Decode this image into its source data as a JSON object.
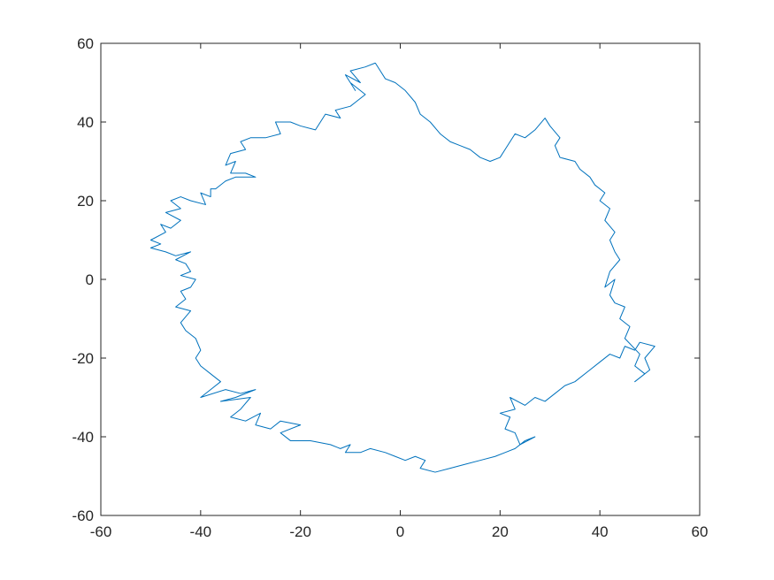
{
  "chart_data": {
    "type": "line",
    "title": "",
    "xlabel": "",
    "ylabel": "",
    "xlim": [
      -60,
      60
    ],
    "ylim": [
      -60,
      60
    ],
    "x_ticks": [
      -60,
      -40,
      -20,
      0,
      20,
      40,
      60
    ],
    "y_ticks": [
      -60,
      -40,
      -20,
      0,
      20,
      40,
      60
    ],
    "x_tick_labels": [
      "-60",
      "-40",
      "-20",
      "0",
      "20",
      "40",
      "60"
    ],
    "y_tick_labels": [
      "-60",
      "-40",
      "-20",
      "0",
      "20",
      "40",
      "60"
    ],
    "grid": false,
    "box": true,
    "colors": {
      "line": "#0072bd",
      "axes": "#262626",
      "background": "#ffffff"
    },
    "series": [
      {
        "values": [
          [
            -5,
            55
          ],
          [
            -7,
            54
          ],
          [
            -10,
            53
          ],
          [
            -8,
            50
          ],
          [
            -11,
            52
          ],
          [
            -9,
            48
          ],
          [
            -10,
            50
          ],
          [
            -7,
            47
          ],
          [
            -9,
            45
          ],
          [
            -10,
            44
          ],
          [
            -13,
            43
          ],
          [
            -12,
            41
          ],
          [
            -15,
            42
          ],
          [
            -17,
            38
          ],
          [
            -20,
            39
          ],
          [
            -22,
            40
          ],
          [
            -25,
            40
          ],
          [
            -24,
            37
          ],
          [
            -27,
            36
          ],
          [
            -30,
            36
          ],
          [
            -32,
            35
          ],
          [
            -31,
            33
          ],
          [
            -34,
            32
          ],
          [
            -35,
            29
          ],
          [
            -33,
            30
          ],
          [
            -34,
            27
          ],
          [
            -31,
            27
          ],
          [
            -29,
            26
          ],
          [
            -33,
            26
          ],
          [
            -35,
            25
          ],
          [
            -37,
            23
          ],
          [
            -38,
            23
          ],
          [
            -38,
            21
          ],
          [
            -40,
            22
          ],
          [
            -39,
            19
          ],
          [
            -42,
            20
          ],
          [
            -44,
            21
          ],
          [
            -46,
            20
          ],
          [
            -44,
            18
          ],
          [
            -47,
            17
          ],
          [
            -44,
            15
          ],
          [
            -46,
            13
          ],
          [
            -48,
            14
          ],
          [
            -47,
            12
          ],
          [
            -50,
            10
          ],
          [
            -48,
            9
          ],
          [
            -50,
            8
          ],
          [
            -47,
            7
          ],
          [
            -45,
            6
          ],
          [
            -42,
            7
          ],
          [
            -45,
            5
          ],
          [
            -43,
            4
          ],
          [
            -42,
            2
          ],
          [
            -44,
            1
          ],
          [
            -41,
            0
          ],
          [
            -42,
            -2
          ],
          [
            -44,
            -3
          ],
          [
            -43,
            -5
          ],
          [
            -45,
            -7
          ],
          [
            -42,
            -8
          ],
          [
            -44,
            -11
          ],
          [
            -43,
            -13
          ],
          [
            -41,
            -15
          ],
          [
            -40,
            -18
          ],
          [
            -41,
            -20
          ],
          [
            -40,
            -22
          ],
          [
            -38,
            -24
          ],
          [
            -36,
            -26
          ],
          [
            -38,
            -28
          ],
          [
            -40,
            -30
          ],
          [
            -35,
            -28
          ],
          [
            -32,
            -29
          ],
          [
            -29,
            -28
          ],
          [
            -33,
            -30
          ],
          [
            -36,
            -31
          ],
          [
            -30,
            -30
          ],
          [
            -32,
            -33
          ],
          [
            -34,
            -35
          ],
          [
            -31,
            -36
          ],
          [
            -28,
            -34
          ],
          [
            -29,
            -37
          ],
          [
            -26,
            -38
          ],
          [
            -24,
            -36
          ],
          [
            -20,
            -37
          ],
          [
            -24,
            -39
          ],
          [
            -22,
            -41
          ],
          [
            -18,
            -41
          ],
          [
            -14,
            -42
          ],
          [
            -12,
            -43
          ],
          [
            -10,
            -42
          ],
          [
            -11,
            -44
          ],
          [
            -8,
            -44
          ],
          [
            -6,
            -43
          ],
          [
            -3,
            -44
          ],
          [
            -1,
            -45
          ],
          [
            1,
            -46
          ],
          [
            3,
            -45
          ],
          [
            5,
            -46
          ],
          [
            4,
            -48
          ],
          [
            7,
            -49
          ],
          [
            10,
            -48
          ],
          [
            13,
            -47
          ],
          [
            16,
            -46
          ],
          [
            19,
            -45
          ],
          [
            21,
            -44
          ],
          [
            23,
            -43
          ],
          [
            25,
            -41
          ],
          [
            27,
            -40
          ],
          [
            24,
            -42
          ],
          [
            23,
            -39
          ],
          [
            21,
            -38
          ],
          [
            22,
            -35
          ],
          [
            20,
            -34
          ],
          [
            23,
            -33
          ],
          [
            22,
            -30
          ],
          [
            25,
            -32
          ],
          [
            27,
            -30
          ],
          [
            29,
            -31
          ],
          [
            31,
            -29
          ],
          [
            33,
            -27
          ],
          [
            35,
            -26
          ],
          [
            38,
            -23
          ],
          [
            40,
            -21
          ],
          [
            42,
            -19
          ],
          [
            44,
            -20
          ],
          [
            45,
            -17
          ],
          [
            47,
            -18
          ],
          [
            48,
            -16
          ],
          [
            51,
            -17
          ],
          [
            49,
            -20
          ],
          [
            50,
            -23
          ],
          [
            47,
            -26
          ],
          [
            49,
            -24
          ],
          [
            47,
            -22
          ],
          [
            48,
            -19
          ],
          [
            45,
            -15
          ],
          [
            46,
            -12
          ],
          [
            44,
            -10
          ],
          [
            45,
            -7
          ],
          [
            43,
            -6
          ],
          [
            42,
            -4
          ],
          [
            43,
            0
          ],
          [
            41,
            -2
          ],
          [
            42,
            2
          ],
          [
            44,
            5
          ],
          [
            43,
            7
          ],
          [
            42,
            10
          ],
          [
            43,
            12
          ],
          [
            41,
            15
          ],
          [
            42,
            18
          ],
          [
            40,
            20
          ],
          [
            41,
            22
          ],
          [
            39,
            24
          ],
          [
            38,
            26
          ],
          [
            36,
            28
          ],
          [
            35,
            30
          ],
          [
            32,
            31
          ],
          [
            31,
            34
          ],
          [
            32,
            36
          ],
          [
            30,
            39
          ],
          [
            29,
            41
          ],
          [
            27,
            38
          ],
          [
            25,
            36
          ],
          [
            23,
            37
          ],
          [
            22,
            35
          ],
          [
            21,
            33
          ],
          [
            20,
            31
          ],
          [
            18,
            30
          ],
          [
            16,
            31
          ],
          [
            14,
            33
          ],
          [
            12,
            34
          ],
          [
            10,
            35
          ],
          [
            8,
            37
          ],
          [
            6,
            40
          ],
          [
            4,
            42
          ],
          [
            3,
            45
          ],
          [
            1,
            48
          ],
          [
            -1,
            50
          ],
          [
            -3,
            51
          ],
          [
            -4,
            53
          ],
          [
            -5,
            55
          ]
        ]
      }
    ]
  }
}
